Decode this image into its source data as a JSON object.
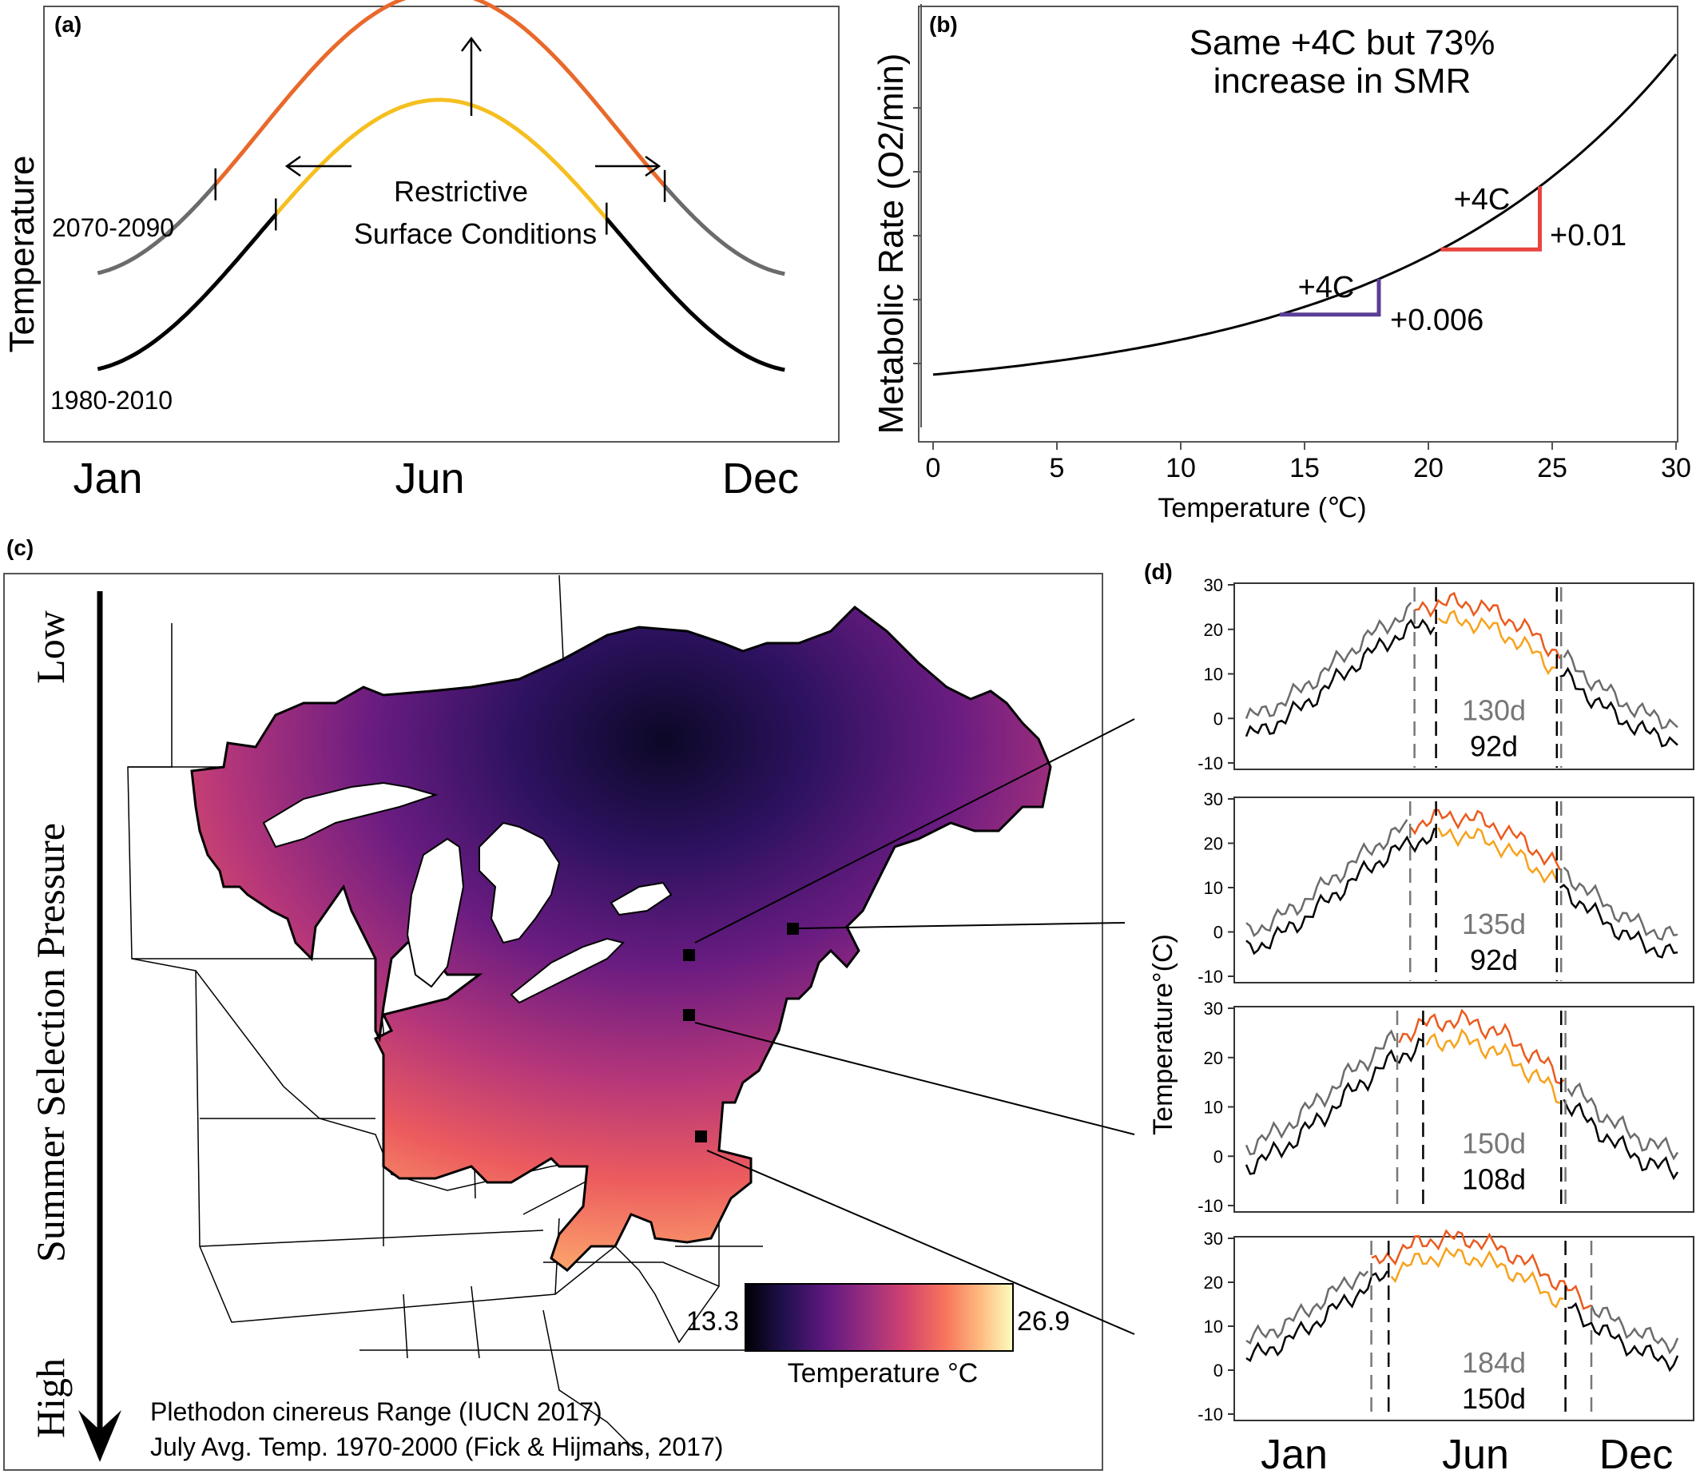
{
  "panel_a": {
    "label": "(a)",
    "ylabel": "Temperature",
    "x_ticks": [
      "Jan",
      "Jun",
      "Dec"
    ],
    "annotation": [
      "Restrictive",
      "Surface Conditions"
    ],
    "period_future": "2070-2090",
    "period_past": "1980-2010",
    "colors": {
      "future_hot": "#e8692b",
      "past_hot": "#f5bf20",
      "future": "#6b6b6b",
      "past": "#000000"
    }
  },
  "panel_b": {
    "label": "(b)",
    "title": [
      "Same +4C but 73%",
      "increase in SMR"
    ],
    "xlabel": "Temperature (℃)",
    "ylabel": "Metabolic Rate (O2/min)",
    "step_low_label": "+4C",
    "step_low_delta": "+0.006",
    "step_high_label": "+4C",
    "step_high_delta": "+0.01",
    "colors": {
      "low_step": "#5b3e96",
      "high_step": "#e8453e",
      "curve": "#000000"
    }
  },
  "panel_c": {
    "label": "(c)",
    "axis_low": "Low",
    "axis_title": "Summer Selection Pressure",
    "axis_high": "High",
    "legend_min": "13.3",
    "legend_max": "26.9",
    "legend_title": "Temperature °C",
    "caption_1": "Plethodon cinereus Range (IUCN 2017)",
    "caption_2": "July Avg. Temp. 1970-2000 (Fick & Hijmans, 2017)"
  },
  "panel_d": {
    "label": "(d)",
    "ylabel": "Temperature°(C)",
    "x_ticks": [
      "Jan",
      "Jun",
      "Dec"
    ],
    "colors": {
      "future_line": "#6b6b6b",
      "past_line": "#000000",
      "future_hot": "#ea5a1e",
      "past_hot": "#f7a21b"
    }
  },
  "chart_data": [
    {
      "type": "line",
      "panel": "a",
      "ylabel": "Temperature",
      "categories": [
        "Jan",
        "Jun",
        "Dec"
      ],
      "series": [
        {
          "name": "2070-2090"
        },
        {
          "name": "1980-2010"
        }
      ]
    },
    {
      "type": "line",
      "panel": "b",
      "title": "Same +4C but 73% increase in SMR",
      "xlabel": "Temperature (℃)",
      "ylabel": "Metabolic Rate (O2/min)",
      "xlim": [
        0,
        30
      ],
      "x_ticks": [
        0,
        5,
        10,
        15,
        20,
        25,
        30
      ],
      "x": [
        0,
        2.5,
        5,
        7.5,
        10,
        12.5,
        15,
        17.5,
        20,
        22.5,
        25,
        27.5,
        30
      ],
      "y": [
        0.005,
        0.0063,
        0.0078,
        0.0097,
        0.0121,
        0.0151,
        0.0187,
        0.0233,
        0.029,
        0.036,
        0.0448,
        0.0557,
        0.0693
      ],
      "steps": [
        {
          "x_from": 14,
          "x_to": 18,
          "delta": "+0.006",
          "label": "+4C"
        },
        {
          "x_from": 20.5,
          "x_to": 24.5,
          "delta": "+0.01",
          "label": "+4C"
        }
      ]
    },
    {
      "type": "line",
      "panel": "d",
      "ylabel": "Temperature°(C)",
      "ylim": [
        -10,
        30
      ],
      "y_ticks": [
        -10,
        0,
        10,
        20,
        30
      ],
      "categories": [
        "Jan",
        "Jun",
        "Dec"
      ],
      "subplots": [
        {
          "future_days": "130d",
          "past_days": "92d",
          "past_min": -5,
          "past_peak": 22,
          "warming": 4,
          "window_future": [
            0.39,
            0.73
          ],
          "window_past": [
            0.44,
            0.72
          ]
        },
        {
          "future_days": "135d",
          "past_days": "92d",
          "past_min": -5,
          "past_peak": 22,
          "warming": 4,
          "window_future": [
            0.38,
            0.73
          ],
          "window_past": [
            0.44,
            0.72
          ]
        },
        {
          "future_days": "150d",
          "past_days": "108d",
          "past_min": -3,
          "past_peak": 23.5,
          "warming": 4,
          "window_future": [
            0.35,
            0.74
          ],
          "window_past": [
            0.41,
            0.73
          ]
        },
        {
          "future_days": "184d",
          "past_days": "150d",
          "past_min": 2,
          "past_peak": 26,
          "warming": 4,
          "window_future": [
            0.29,
            0.8
          ],
          "window_past": [
            0.33,
            0.74
          ]
        }
      ]
    }
  ]
}
